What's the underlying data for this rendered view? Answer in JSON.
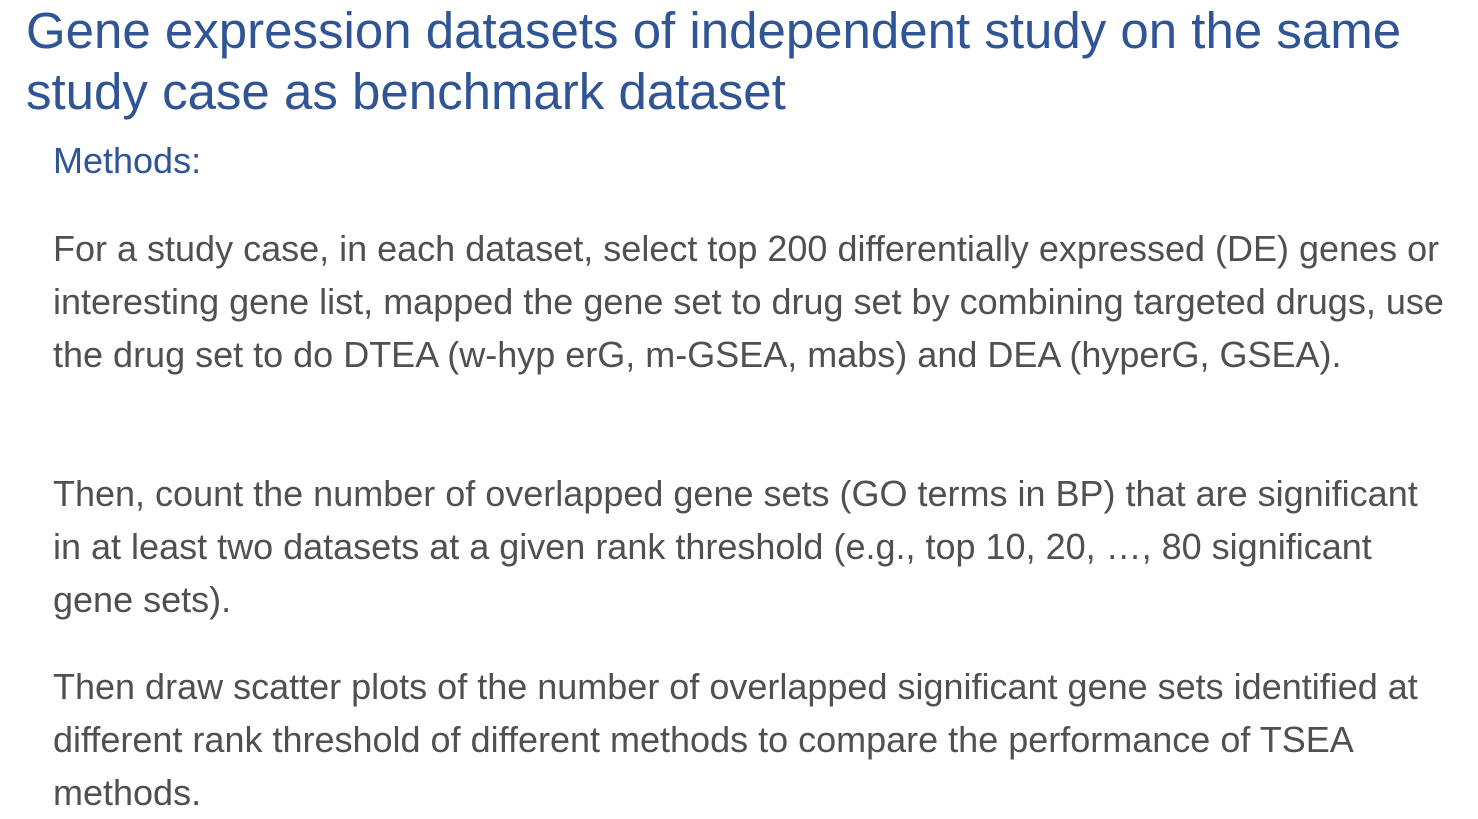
{
  "slide": {
    "title": "Gene expression datasets of independent study on the same study case as benchmark dataset",
    "section_heading": "Methods:",
    "paragraphs": [
      "For a study case, in each dataset, select top 200 differentially expressed (DE) genes or interesting gene list, mapped the gene set to drug set by combining targeted drugs, use the drug set to do DTEA (w-hyp erG, m-GSEA, mabs) and DEA (hyperG, GSEA).",
      "Then, count the number of overlapped gene sets (GO terms in BP) that are significant in at least two datasets at a given rank threshold (e.g., top 10, 20, …, 80 significant gene sets).",
      "Then draw scatter plots of the number of overlapped significant gene sets identified at different rank threshold of different methods to compare the performance of TSEA methods."
    ]
  },
  "colors": {
    "title": "#2f5597",
    "body_text": "#505050",
    "background": "#ffffff"
  }
}
